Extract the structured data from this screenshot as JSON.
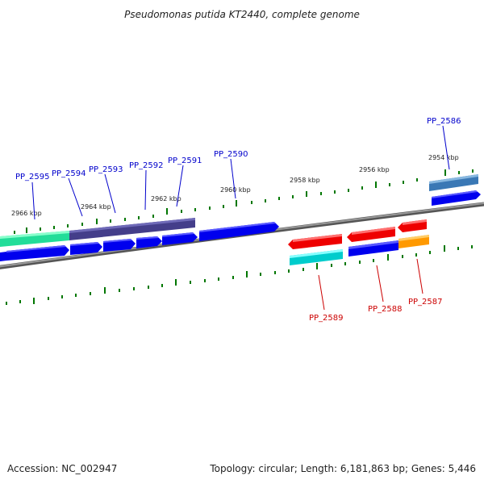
{
  "title": "Pseudomonas putida KT2440, complete genome",
  "footer": {
    "accession": "Accession: NC_002947",
    "summary": "Topology: circular; Length: 6,181,863 bp; Genes: 5,446"
  },
  "colors": {
    "label_top": "#0000cc",
    "label_bottom": "#cc0000",
    "tick": "#007700",
    "backbone": "#888888"
  },
  "scale_labels": [
    "2966 kbp",
    "2964 kbp",
    "2962 kbp",
    "2960 kbp",
    "2958 kbp",
    "2956 kbp",
    "2954 kbp"
  ],
  "genes_top": [
    "PP_2595",
    "PP_2594",
    "PP_2593",
    "PP_2592",
    "PP_2591",
    "PP_2590",
    "PP_2586"
  ],
  "genes_bottom": [
    "PP_2589",
    "PP_2588",
    "PP_2587"
  ]
}
